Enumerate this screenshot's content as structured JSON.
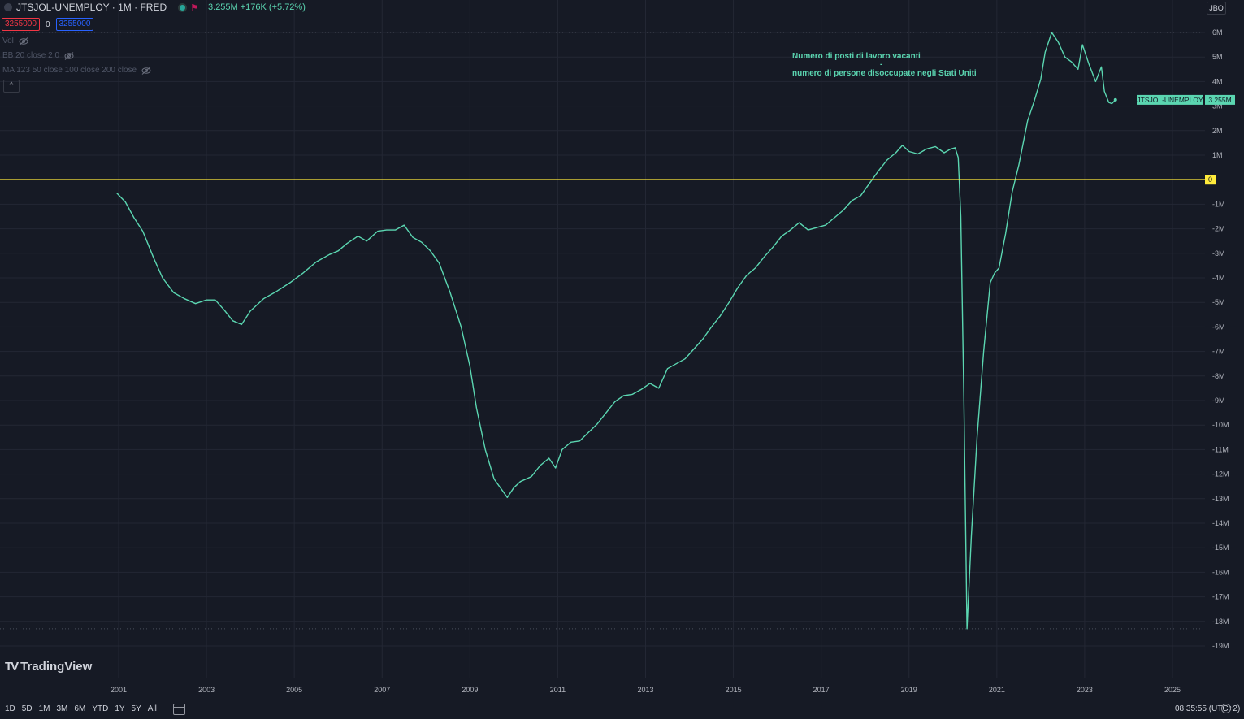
{
  "header": {
    "title": "JTSJOL-UNEMPLOY · 1M · FRED",
    "value_text": "3.255M +176K (+5.72%)",
    "live_icon": "live-dot-icon",
    "flag_icon": "flag-icon"
  },
  "badges": {
    "sell": "3255000",
    "spread": "0",
    "buy": "3255000"
  },
  "indicators": {
    "vol": "Vol",
    "bb": "BB 20 close 2 0",
    "ma": "MA 123 50 close 100 close 200 close"
  },
  "top_right_button": "JBO",
  "annotation": {
    "line1": "Numero di posti di lavoro vacanti",
    "line2": "-",
    "line3": "numero di persone disoccupate negli Stati Uniti"
  },
  "branding": "TradingView",
  "periods": [
    "1D",
    "5D",
    "1M",
    "3M",
    "6M",
    "YTD",
    "1Y",
    "5Y",
    "All"
  ],
  "clock": "08:35:55 (UTC+2)",
  "colors": {
    "background": "#161a25",
    "line": "#5bd6b1",
    "zero_line": "#ffeb3b",
    "grid": "#232734",
    "axis_text": "#b2b5be"
  },
  "chart_data": {
    "type": "line",
    "series": [
      {
        "name": "JTSJOL-UNEMPLOY",
        "points": [
          [
            2000.96,
            -0.55
          ],
          [
            2001.15,
            -0.9
          ],
          [
            2001.35,
            -1.55
          ],
          [
            2001.55,
            -2.1
          ],
          [
            2001.8,
            -3.2
          ],
          [
            2002.0,
            -4.0
          ],
          [
            2002.25,
            -4.6
          ],
          [
            2002.5,
            -4.85
          ],
          [
            2002.75,
            -5.05
          ],
          [
            2003.0,
            -4.9
          ],
          [
            2003.2,
            -4.9
          ],
          [
            2003.4,
            -5.3
          ],
          [
            2003.6,
            -5.75
          ],
          [
            2003.8,
            -5.9
          ],
          [
            2004.0,
            -5.35
          ],
          [
            2004.3,
            -4.85
          ],
          [
            2004.6,
            -4.55
          ],
          [
            2004.9,
            -4.2
          ],
          [
            2005.2,
            -3.8
          ],
          [
            2005.5,
            -3.35
          ],
          [
            2005.8,
            -3.05
          ],
          [
            2006.0,
            -2.9
          ],
          [
            2006.2,
            -2.6
          ],
          [
            2006.45,
            -2.3
          ],
          [
            2006.65,
            -2.5
          ],
          [
            2006.9,
            -2.1
          ],
          [
            2007.1,
            -2.05
          ],
          [
            2007.3,
            -2.05
          ],
          [
            2007.5,
            -1.85
          ],
          [
            2007.7,
            -2.35
          ],
          [
            2007.9,
            -2.55
          ],
          [
            2008.1,
            -2.9
          ],
          [
            2008.3,
            -3.4
          ],
          [
            2008.55,
            -4.6
          ],
          [
            2008.8,
            -6.0
          ],
          [
            2009.0,
            -7.6
          ],
          [
            2009.15,
            -9.3
          ],
          [
            2009.35,
            -11.0
          ],
          [
            2009.55,
            -12.2
          ],
          [
            2009.75,
            -12.7
          ],
          [
            2009.85,
            -12.95
          ],
          [
            2010.0,
            -12.55
          ],
          [
            2010.15,
            -12.3
          ],
          [
            2010.4,
            -12.1
          ],
          [
            2010.6,
            -11.65
          ],
          [
            2010.8,
            -11.35
          ],
          [
            2010.95,
            -11.75
          ],
          [
            2011.1,
            -11.0
          ],
          [
            2011.3,
            -10.7
          ],
          [
            2011.5,
            -10.65
          ],
          [
            2011.7,
            -10.3
          ],
          [
            2011.9,
            -9.95
          ],
          [
            2012.1,
            -9.5
          ],
          [
            2012.3,
            -9.05
          ],
          [
            2012.5,
            -8.8
          ],
          [
            2012.7,
            -8.75
          ],
          [
            2012.9,
            -8.55
          ],
          [
            2013.1,
            -8.3
          ],
          [
            2013.3,
            -8.5
          ],
          [
            2013.5,
            -7.7
          ],
          [
            2013.7,
            -7.5
          ],
          [
            2013.9,
            -7.3
          ],
          [
            2014.1,
            -6.9
          ],
          [
            2014.3,
            -6.5
          ],
          [
            2014.5,
            -6.0
          ],
          [
            2014.7,
            -5.55
          ],
          [
            2014.9,
            -5.0
          ],
          [
            2015.1,
            -4.4
          ],
          [
            2015.3,
            -3.9
          ],
          [
            2015.5,
            -3.6
          ],
          [
            2015.7,
            -3.15
          ],
          [
            2015.9,
            -2.75
          ],
          [
            2016.1,
            -2.3
          ],
          [
            2016.3,
            -2.05
          ],
          [
            2016.5,
            -1.75
          ],
          [
            2016.7,
            -2.05
          ],
          [
            2016.9,
            -1.95
          ],
          [
            2017.1,
            -1.85
          ],
          [
            2017.3,
            -1.55
          ],
          [
            2017.5,
            -1.25
          ],
          [
            2017.7,
            -0.85
          ],
          [
            2017.9,
            -0.65
          ],
          [
            2018.1,
            -0.15
          ],
          [
            2018.3,
            0.35
          ],
          [
            2018.5,
            0.8
          ],
          [
            2018.7,
            1.1
          ],
          [
            2018.85,
            1.4
          ],
          [
            2019.0,
            1.15
          ],
          [
            2019.2,
            1.05
          ],
          [
            2019.4,
            1.25
          ],
          [
            2019.6,
            1.35
          ],
          [
            2019.8,
            1.1
          ],
          [
            2019.95,
            1.25
          ],
          [
            2020.05,
            1.3
          ],
          [
            2020.12,
            0.9
          ],
          [
            2020.18,
            -1.5
          ],
          [
            2020.25,
            -9.0
          ],
          [
            2020.32,
            -18.3
          ],
          [
            2020.42,
            -14.5
          ],
          [
            2020.55,
            -10.5
          ],
          [
            2020.7,
            -7.0
          ],
          [
            2020.85,
            -4.2
          ],
          [
            2020.95,
            -3.8
          ],
          [
            2021.05,
            -3.6
          ],
          [
            2021.2,
            -2.2
          ],
          [
            2021.35,
            -0.5
          ],
          [
            2021.5,
            0.6
          ],
          [
            2021.7,
            2.4
          ],
          [
            2021.85,
            3.2
          ],
          [
            2022.0,
            4.1
          ],
          [
            2022.1,
            5.2
          ],
          [
            2022.25,
            6.0
          ],
          [
            2022.4,
            5.6
          ],
          [
            2022.55,
            5.0
          ],
          [
            2022.7,
            4.8
          ],
          [
            2022.85,
            4.5
          ],
          [
            2022.95,
            5.5
          ],
          [
            2023.1,
            4.7
          ],
          [
            2023.25,
            4.0
          ],
          [
            2023.38,
            4.6
          ],
          [
            2023.45,
            3.6
          ],
          [
            2023.55,
            3.15
          ],
          [
            2023.62,
            3.1
          ],
          [
            2023.7,
            3.255
          ]
        ]
      }
    ],
    "x_ticks": [
      "2001",
      "2003",
      "2005",
      "2007",
      "2009",
      "2011",
      "2013",
      "2015",
      "2017",
      "2019",
      "2021",
      "2023",
      "2025"
    ],
    "y_ticks": [
      "6M",
      "5M",
      "4M",
      "3M",
      "2M",
      "1M",
      "0",
      "-1M",
      "-2M",
      "-3M",
      "-4M",
      "-5M",
      "-6M",
      "-7M",
      "-8M",
      "-9M",
      "-10M",
      "-11M",
      "-12M",
      "-13M",
      "-14M",
      "-15M",
      "-16M",
      "-17M",
      "-18M",
      "-19M"
    ],
    "ylim": [
      -19,
      6
    ],
    "xlim": [
      2001,
      2025
    ],
    "horizontal_line": {
      "value": 0,
      "label": "0"
    },
    "last_value": {
      "label": "JTSJOL-UNEMPLOY",
      "value_text": "3.255M",
      "value": 3.255
    },
    "grid": true
  }
}
